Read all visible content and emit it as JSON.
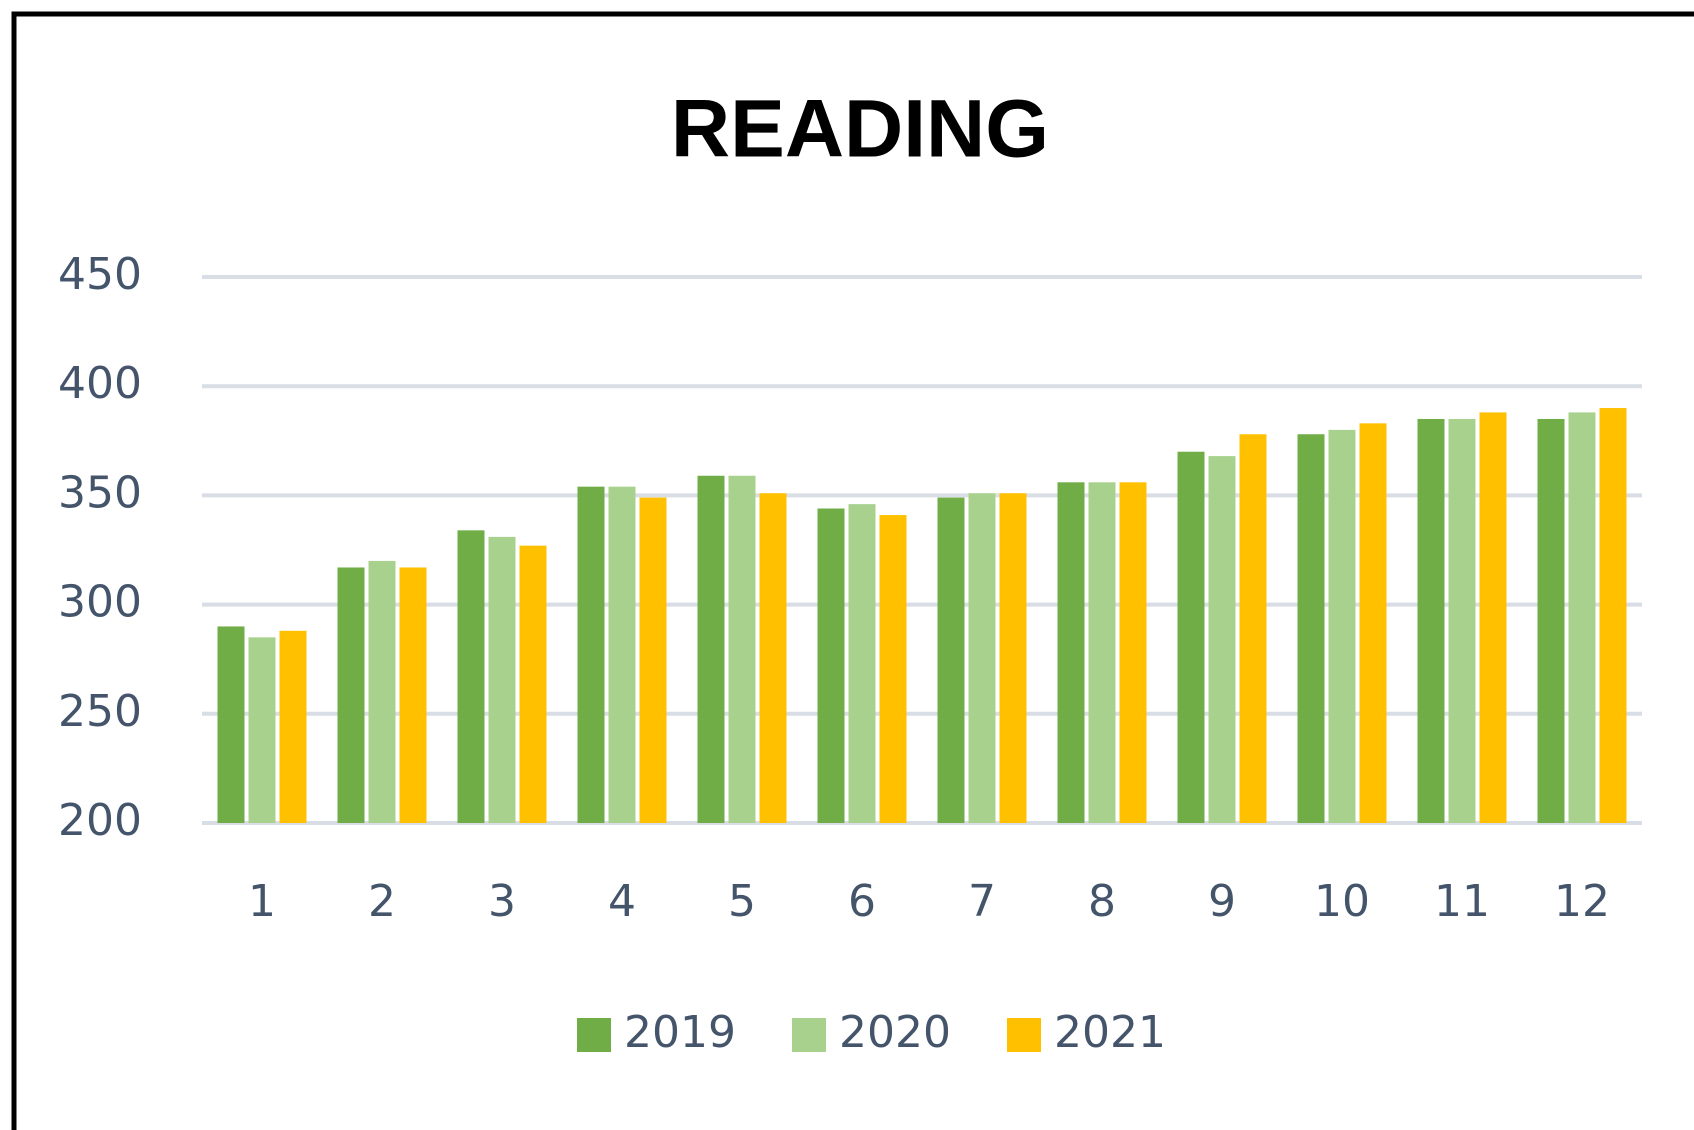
{
  "chart_data": {
    "type": "bar",
    "title": "READING",
    "categories": [
      "1",
      "2",
      "3",
      "4",
      "5",
      "6",
      "7",
      "8",
      "9",
      "10",
      "11",
      "12"
    ],
    "series": [
      {
        "name": "2019",
        "color": "#70ad47",
        "values": [
          290,
          317,
          334,
          354,
          359,
          344,
          349,
          356,
          370,
          378,
          385,
          385
        ]
      },
      {
        "name": "2020",
        "color": "#a9d18e",
        "values": [
          285,
          320,
          331,
          354,
          359,
          346,
          351,
          356,
          368,
          380,
          385,
          388
        ]
      },
      {
        "name": "2021",
        "color": "#ffc000",
        "values": [
          288,
          317,
          327,
          349,
          351,
          341,
          351,
          356,
          378,
          383,
          388,
          390
        ]
      }
    ],
    "ylim": [
      200,
      450
    ],
    "yticks": [
      200,
      250,
      300,
      350,
      400,
      450
    ],
    "grid": true,
    "legend": "bottom"
  }
}
